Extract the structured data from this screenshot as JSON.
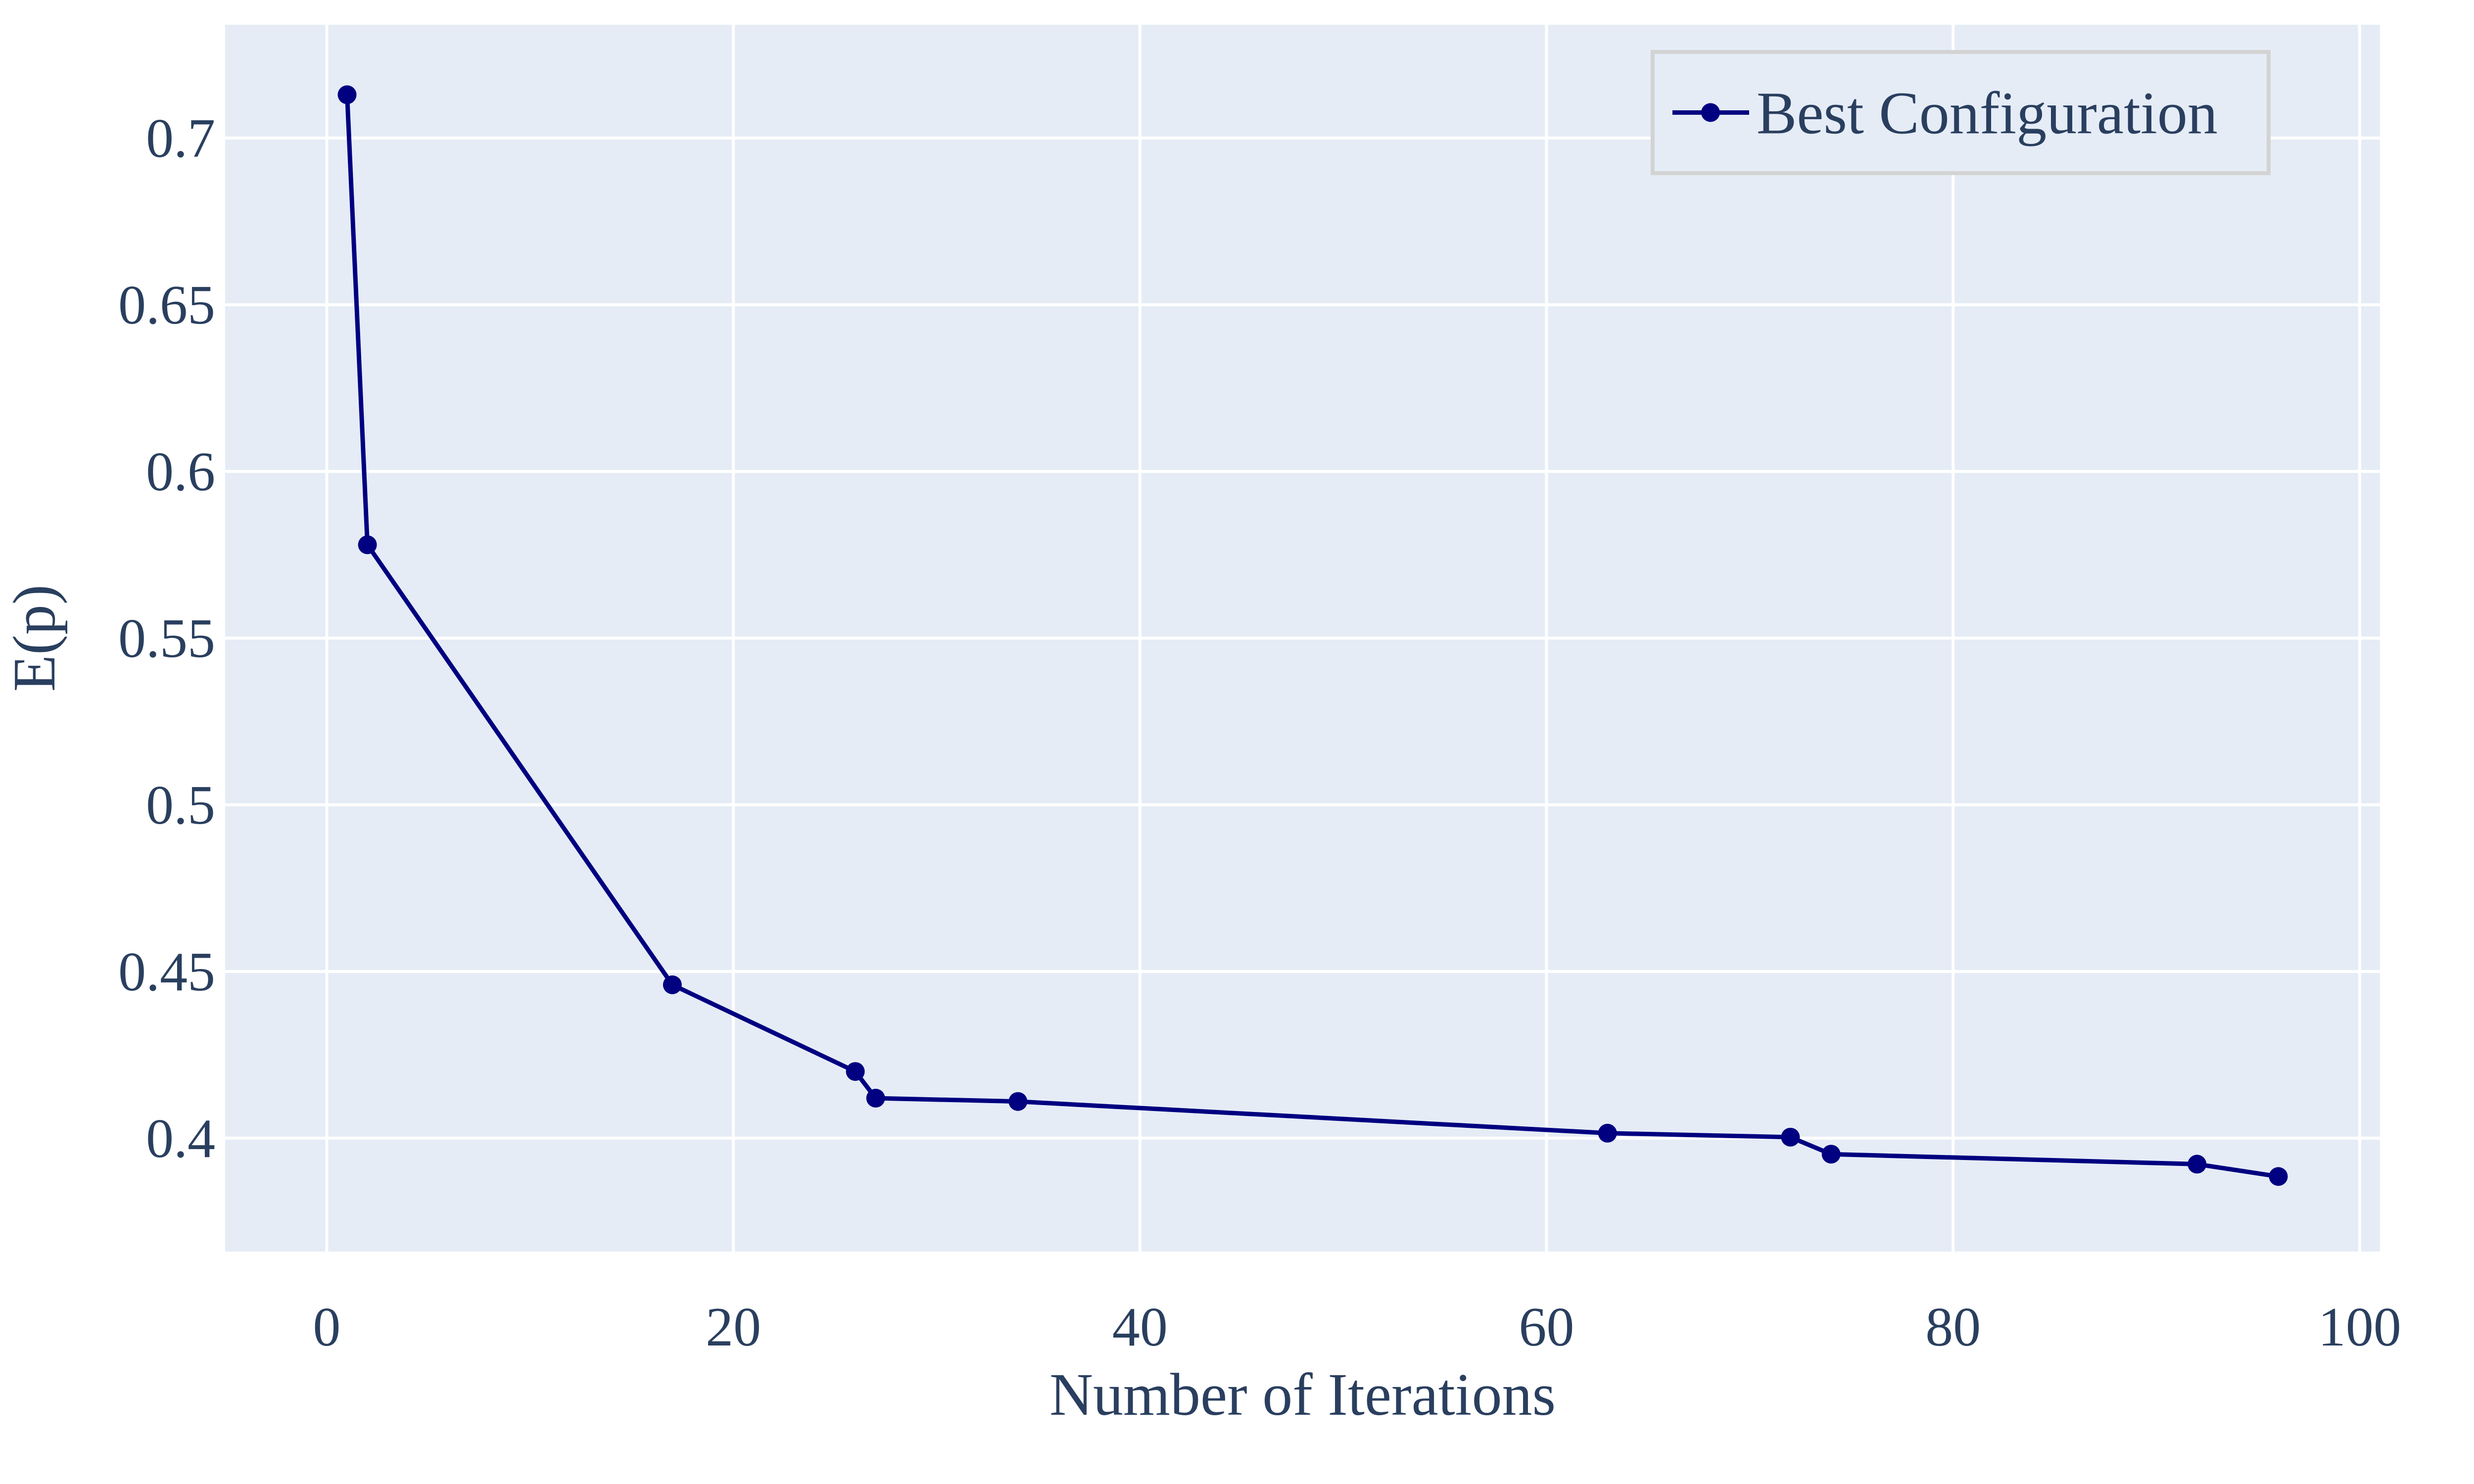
{
  "chart_data": {
    "type": "line",
    "title": "",
    "xlabel": "Number of Iterations",
    "ylabel": "E(p)",
    "xlim": [
      -5,
      101
    ],
    "ylim": [
      0.366,
      0.734
    ],
    "xticks": [
      0,
      20,
      40,
      60,
      80,
      100
    ],
    "xtick_labels": [
      "0",
      "20",
      "40",
      "60",
      "80",
      "100"
    ],
    "yticks": [
      0.4,
      0.45,
      0.5,
      0.55,
      0.6,
      0.65,
      0.7
    ],
    "ytick_labels": [
      "0.4",
      "0.45",
      "0.5",
      "0.55",
      "0.6",
      "0.65",
      "0.7"
    ],
    "grid": true,
    "legend_position": "top-right",
    "colors": {
      "plot_background": "#e5ecf6",
      "grid": "#ffffff",
      "line": "#000080",
      "text": "#2a3f5f",
      "legend_border": "#d3d3d3"
    },
    "series": [
      {
        "name": "Best Configuration",
        "x": [
          1,
          2,
          17,
          26,
          27,
          34,
          63,
          72,
          74,
          92,
          96
        ],
        "y": [
          0.713,
          0.578,
          0.446,
          0.42,
          0.412,
          0.411,
          0.4015,
          0.4003,
          0.3952,
          0.3922,
          0.3885
        ]
      }
    ]
  }
}
